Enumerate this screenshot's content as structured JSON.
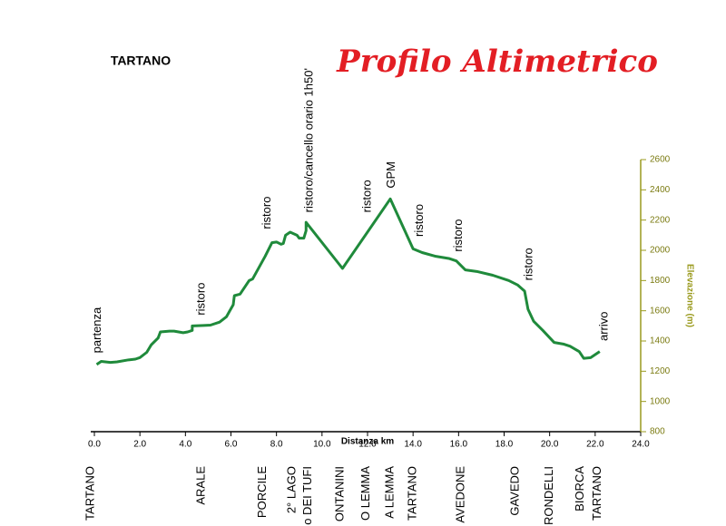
{
  "chart_data": {
    "type": "line",
    "label": "TARTANO",
    "title": "Profilo Altimetrico",
    "x_label": "Distanza km",
    "y_label": "Elevazione (m)",
    "xlim": [
      0,
      24
    ],
    "ylim": [
      800,
      2600
    ],
    "xticks": [
      {
        "value": 0,
        "label": "0.0"
      },
      {
        "value": 2,
        "label": "2.0"
      },
      {
        "value": 4,
        "label": "4.0"
      },
      {
        "value": 6,
        "label": "6.0"
      },
      {
        "value": 8,
        "label": "8.0"
      },
      {
        "value": 10,
        "label": "10.0"
      },
      {
        "value": 12,
        "label": "12.0"
      },
      {
        "value": 14,
        "label": "14.0"
      },
      {
        "value": 16,
        "label": "16.0"
      },
      {
        "value": 18,
        "label": "18.0"
      },
      {
        "value": 20,
        "label": "20.0"
      },
      {
        "value": 22,
        "label": "22.0"
      },
      {
        "value": 24,
        "label": "24.0"
      }
    ],
    "yticks": [
      800,
      1000,
      1200,
      1400,
      1600,
      1800,
      2000,
      2200,
      2400,
      2600
    ],
    "series": [
      {
        "color": "#1f8a3b",
        "x": [
          0.1,
          0.3,
          0.7,
          1.0,
          1.5,
          1.8,
          2.0,
          2.3,
          2.5,
          2.8,
          2.9,
          3.3,
          3.5,
          3.9,
          4.1,
          4.3,
          4.3,
          4.8,
          5.1,
          5.5,
          5.8,
          5.95,
          6.1,
          6.15,
          6.4,
          6.8,
          6.95,
          7.5,
          7.8,
          8.0,
          8.2,
          8.3,
          8.4,
          8.6,
          8.9,
          9.0,
          9.2,
          9.3,
          9.3,
          10.9,
          13.0,
          14.0,
          14.4,
          15.0,
          15.6,
          15.9,
          16.3,
          16.8,
          17.5,
          18.2,
          18.6,
          18.9,
          19.05,
          19.3,
          19.7,
          20.2,
          20.6,
          20.9,
          21.3,
          21.5,
          21.8,
          22.2
        ],
        "values": [
          1245,
          1265,
          1258,
          1262,
          1275,
          1280,
          1290,
          1325,
          1375,
          1420,
          1460,
          1465,
          1465,
          1455,
          1460,
          1470,
          1500,
          1503,
          1505,
          1525,
          1560,
          1600,
          1640,
          1700,
          1710,
          1800,
          1810,
          1960,
          2050,
          2055,
          2040,
          2045,
          2100,
          2120,
          2100,
          2080,
          2080,
          2130,
          2185,
          1880,
          2340,
          2010,
          1985,
          1960,
          1945,
          1930,
          1870,
          1860,
          1835,
          1800,
          1770,
          1730,
          1610,
          1530,
          1470,
          1390,
          1380,
          1365,
          1330,
          1285,
          1290,
          1330
        ]
      }
    ],
    "annotations": [
      {
        "text": "partenza",
        "x": 0.15,
        "y": 1320
      },
      {
        "text": "ristoro",
        "x": 4.7,
        "y": 1570
      },
      {
        "text": "ristoro",
        "x": 7.6,
        "y": 2140
      },
      {
        "text": "ristoro/cancello orario 1h50'",
        "x": 9.45,
        "y": 2250
      },
      {
        "text": "ristoro",
        "x": 12.0,
        "y": 2250
      },
      {
        "text": "GPM",
        "x": 13.05,
        "y": 2410
      },
      {
        "text": "ristoro",
        "x": 14.3,
        "y": 2090
      },
      {
        "text": "ristoro",
        "x": 16.0,
        "y": 1990
      },
      {
        "text": "ristoro",
        "x": 19.1,
        "y": 1800
      },
      {
        "text": "arrivo",
        "x": 22.4,
        "y": 1400
      }
    ],
    "places": [
      {
        "text": "TARTANO",
        "x": -0.15
      },
      {
        "text": "ARALE",
        "x": 4.7
      },
      {
        "text": "PORCILE",
        "x": 7.4
      },
      {
        "text": "2° LAGO",
        "x": 8.7
      },
      {
        "text": "o DEI TUFI",
        "x": 9.4
      },
      {
        "text": "ONTANINI",
        "x": 10.8
      },
      {
        "text": "O LEMMA",
        "x": 11.95
      },
      {
        "text": "A LEMMA",
        "x": 13.0
      },
      {
        "text": "TARTANO",
        "x": 14.0
      },
      {
        "text": "AVEDONE",
        "x": 16.1
      },
      {
        "text": "GAVEDO",
        "x": 18.5
      },
      {
        "text": "RONDELLI",
        "x": 20.0
      },
      {
        "text": "BIORCA",
        "x": 21.35
      },
      {
        "text": "TARTANO",
        "x": 22.1
      }
    ]
  }
}
